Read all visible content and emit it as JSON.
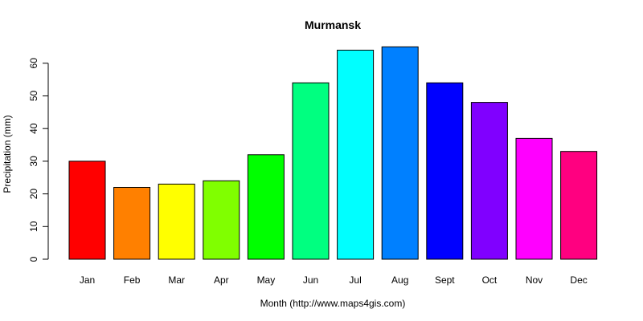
{
  "chart_data": {
    "type": "bar",
    "title": "Murmansk",
    "xlabel": "Month (http://www.maps4gis.com)",
    "ylabel": "Precipitation (mm)",
    "categories": [
      "Jan",
      "Feb",
      "Mar",
      "Apr",
      "May",
      "Jun",
      "Jul",
      "Aug",
      "Sept",
      "Oct",
      "Nov",
      "Dec"
    ],
    "values": [
      30,
      22,
      23,
      24,
      32,
      54,
      64,
      65,
      54,
      48,
      37,
      33
    ],
    "colors": [
      "#ff0000",
      "#ff8000",
      "#ffff00",
      "#80ff00",
      "#00ff00",
      "#00ff80",
      "#00ffff",
      "#0080ff",
      "#0000ff",
      "#8000ff",
      "#ff00ff",
      "#ff0080"
    ],
    "ylim": [
      0,
      65
    ],
    "yticks": [
      0,
      10,
      20,
      30,
      40,
      50,
      60
    ],
    "grid": false,
    "legend": "none"
  }
}
